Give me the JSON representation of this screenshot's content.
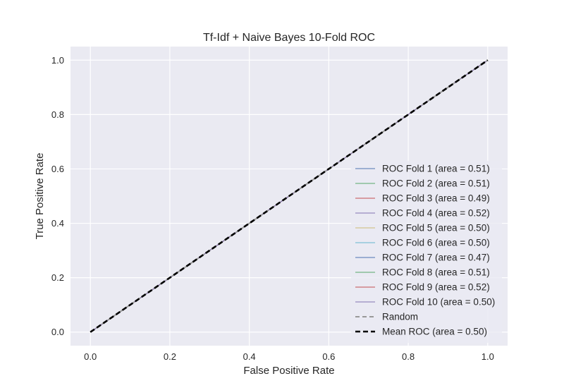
{
  "chart_data": {
    "type": "line",
    "title": "Tf-Idf + Naive Bayes 10-Fold ROC",
    "xlabel": "False Positive Rate",
    "ylabel": "True Positive Rate",
    "xlim": [
      -0.05,
      1.05
    ],
    "ylim": [
      -0.05,
      1.05
    ],
    "xticks": [
      0.0,
      0.2,
      0.4,
      0.6,
      0.8,
      1.0
    ],
    "yticks": [
      0.0,
      0.2,
      0.4,
      0.6,
      0.8,
      1.0
    ],
    "xtick_labels": [
      "0.0",
      "0.2",
      "0.4",
      "0.6",
      "0.8",
      "1.0"
    ],
    "ytick_labels": [
      "0.0",
      "0.2",
      "0.4",
      "0.6",
      "0.8",
      "1.0"
    ],
    "grid": true,
    "background": "#eaeaf2",
    "legend_position": "lower-right",
    "series": [
      {
        "name": "ROC Fold 1 (area = 0.51)",
        "color": "#4c72b0",
        "style": "solid",
        "x": [
          0,
          1
        ],
        "y": [
          0,
          1
        ]
      },
      {
        "name": "ROC Fold 2 (area = 0.51)",
        "color": "#55a868",
        "style": "solid",
        "x": [
          0,
          1
        ],
        "y": [
          0,
          1
        ]
      },
      {
        "name": "ROC Fold 3 (area = 0.49)",
        "color": "#c44e52",
        "style": "solid",
        "x": [
          0,
          1
        ],
        "y": [
          0,
          1
        ]
      },
      {
        "name": "ROC Fold 4 (area = 0.52)",
        "color": "#8172b2",
        "style": "solid",
        "x": [
          0,
          1
        ],
        "y": [
          0,
          1
        ]
      },
      {
        "name": "ROC Fold 5 (area = 0.50)",
        "color": "#ccb974",
        "style": "solid",
        "x": [
          0,
          1
        ],
        "y": [
          0,
          1
        ]
      },
      {
        "name": "ROC Fold 6 (area = 0.50)",
        "color": "#64b5cd",
        "style": "solid",
        "x": [
          0,
          1
        ],
        "y": [
          0,
          1
        ]
      },
      {
        "name": "ROC Fold 7 (area = 0.47)",
        "color": "#4c72b0",
        "style": "solid",
        "x": [
          0,
          1
        ],
        "y": [
          0,
          1
        ]
      },
      {
        "name": "ROC Fold 8 (area = 0.51)",
        "color": "#55a868",
        "style": "solid",
        "x": [
          0,
          1
        ],
        "y": [
          0,
          1
        ]
      },
      {
        "name": "ROC Fold 9 (area = 0.52)",
        "color": "#c44e52",
        "style": "solid",
        "x": [
          0,
          1
        ],
        "y": [
          0,
          1
        ]
      },
      {
        "name": "ROC Fold 10 (area = 0.50)",
        "color": "#8172b2",
        "style": "solid",
        "x": [
          0,
          1
        ],
        "y": [
          0,
          1
        ]
      },
      {
        "name": "Random",
        "color": "#999999",
        "style": "dashed",
        "x": [
          0,
          1
        ],
        "y": [
          0,
          1
        ]
      },
      {
        "name": "Mean ROC (area = 0.50)",
        "color": "#000000",
        "style": "dashed-bold",
        "x": [
          0,
          1
        ],
        "y": [
          0,
          1
        ]
      }
    ]
  }
}
